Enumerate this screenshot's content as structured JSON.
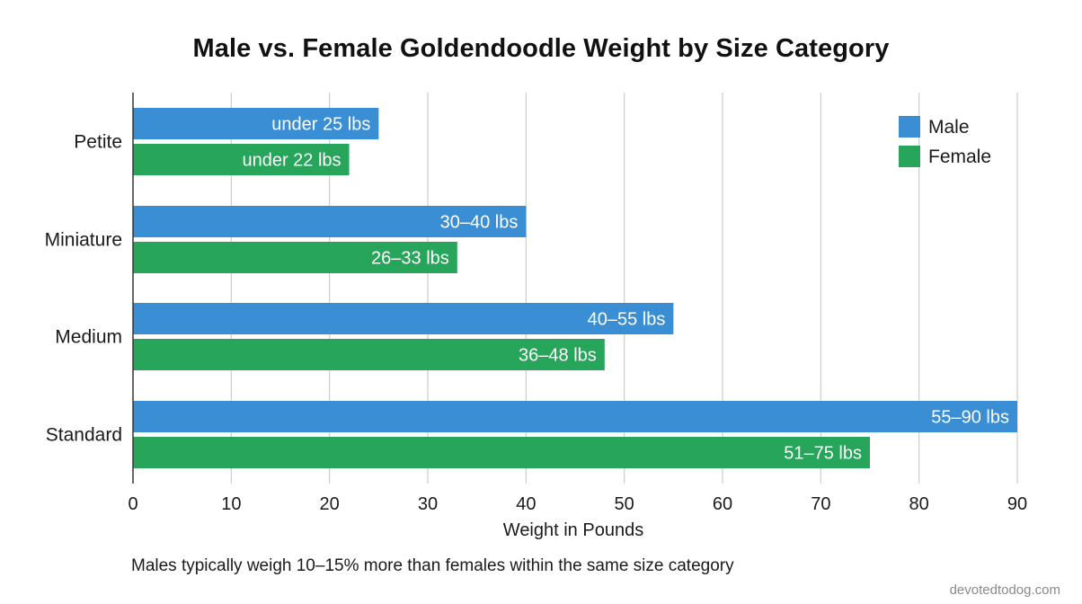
{
  "colors": {
    "male": "#3a8fd4",
    "female": "#27a55a",
    "grid": "#cccccc",
    "axis": "#333333"
  },
  "chart_data": {
    "type": "bar",
    "orientation": "horizontal",
    "title": "Male vs. Female Goldendoodle Weight by Size Category",
    "xlabel": "Weight in Pounds",
    "ylabel": "",
    "xlim": [
      0,
      90
    ],
    "xticks": [
      0,
      10,
      20,
      30,
      40,
      50,
      60,
      70,
      80,
      90
    ],
    "grid": true,
    "legend": "top-right",
    "categories": [
      "Petite",
      "Miniature",
      "Medium",
      "Standard"
    ],
    "series": [
      {
        "name": "Male",
        "color": "#3a8fd4",
        "values": [
          25,
          40,
          55,
          90
        ],
        "labels": [
          "under 25 lbs",
          "30–40 lbs",
          "40–55 lbs",
          "55–90 lbs"
        ]
      },
      {
        "name": "Female",
        "color": "#27a55a",
        "values": [
          22,
          33,
          48,
          75
        ],
        "labels": [
          "under 22 lbs",
          "26–33 lbs",
          "36–48 lbs",
          "51–75 lbs"
        ]
      }
    ]
  },
  "footnote": "Males typically weigh 10–15% more than females within the same size category",
  "watermark": "devotedtodog.com"
}
